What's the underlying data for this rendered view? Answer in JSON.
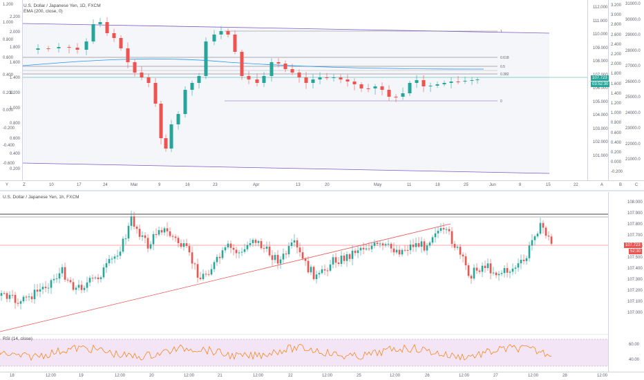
{
  "top_chart": {
    "title": "U.S. Dollar / Japanese Yen, 1D, FXCM",
    "indicator": "EMA (200, close, 0)",
    "left_axis": [
      "1.200",
      "1.000",
      "0.800",
      "0.600",
      "0.400",
      "0.200",
      "0.000",
      "-0.200",
      "-0.400",
      "-0.600",
      "2.200",
      "2.000",
      "1.800",
      "1.600",
      "1.400",
      "1.200",
      "1.000",
      "0.800",
      "0.600",
      "0.400",
      "0.200"
    ],
    "right_axis_inner": [
      "112.000",
      "111.000",
      "110.000",
      "109.000",
      "108.000",
      "107.000",
      "106.000",
      "105.000",
      "104.000",
      "103.000",
      "102.000",
      "101.000"
    ],
    "right_axis_inner2": [
      "3.200",
      "3.000",
      "2.800",
      "2.600",
      "2.400",
      "2.200",
      "2.000",
      "1.800",
      "1.600",
      "1.400",
      "1.200",
      "1.000",
      "0.800",
      "0.600",
      "0.400",
      "0.200",
      "0.000",
      "-0.200"
    ],
    "right_axis_outer": [
      "31000.0",
      "30000.0",
      "29000.0",
      "28000.0",
      "27000.0",
      "26000.0",
      "25000.0",
      "24000.0",
      "23000.0",
      "22000.0",
      "21000.0"
    ],
    "time_axis": [
      "10",
      "17",
      "24",
      "Mar",
      "9",
      "16",
      "23",
      "Apr",
      "13",
      "20",
      "May",
      "11",
      "18",
      "25",
      "Jun",
      "8",
      "15",
      "22"
    ],
    "fib_labels": [
      "1",
      "0.618",
      "0.5",
      "0.382",
      "0"
    ],
    "price_tag": "107.723",
    "countdown": "03:52:30",
    "left_buttons": [
      "Y",
      "Z"
    ],
    "right_buttons": [
      "A",
      "B",
      "C"
    ]
  },
  "bottom_chart": {
    "title": "U.S. Dollar / Japanese Yen, 1h, FXCM",
    "right_axis": [
      "108.000",
      "107.900",
      "107.800",
      "107.700",
      "107.600",
      "107.500",
      "107.400",
      "107.300",
      "107.200",
      "107.100",
      "107.000"
    ],
    "time_axis": [
      "18",
      "12:00",
      "19",
      "12:00",
      "20",
      "12:00",
      "21",
      "12:00",
      "22",
      "12:00",
      "25",
      "12:00",
      "26",
      "12:00",
      "27",
      "12:00",
      "28",
      "12:00"
    ],
    "price_tag": "107.723",
    "countdown": "52:30",
    "rsi_title": "RSI (14, close)",
    "rsi_axis": [
      "60.00",
      "40.00"
    ]
  },
  "colors": {
    "up": "#26a69a",
    "down": "#ef5350",
    "channel": "#7e57c2",
    "ema": "#2196f3",
    "rsi": "#f57c00",
    "rsi_band": "#f3e5f5"
  }
}
